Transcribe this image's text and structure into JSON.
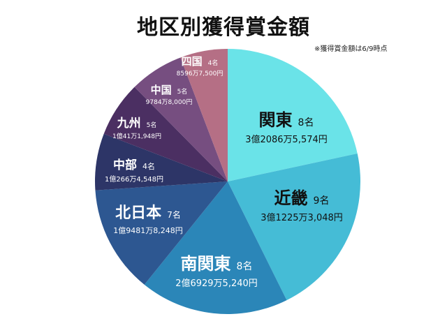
{
  "chart_data": {
    "type": "pie",
    "title": "地区別獲得賞金額",
    "note": "※獲得賞金額は6/9時点",
    "slices": [
      {
        "region": "関東",
        "count_label": "8名",
        "amount_label": "3億2086万5,574円",
        "value": 320865574,
        "color": "#6ae3e8",
        "text": "dark"
      },
      {
        "region": "近畿",
        "count_label": "9名",
        "amount_label": "3億1225万3,048円",
        "value": 312253048,
        "color": "#45bcd6",
        "text": "dark"
      },
      {
        "region": "南関東",
        "count_label": "8名",
        "amount_label": "2億6929万5,240円",
        "value": 269295240,
        "color": "#2b86b8",
        "text": "light"
      },
      {
        "region": "北日本",
        "count_label": "7名",
        "amount_label": "1億9481万8,248円",
        "value": 194818248,
        "color": "#2d5791",
        "text": "light"
      },
      {
        "region": "中部",
        "count_label": "4名",
        "amount_label": "1億266万4,548円",
        "value": 102664548,
        "color": "#2d3567",
        "text": "light"
      },
      {
        "region": "九州",
        "count_label": "5名",
        "amount_label": "1億41万1,948円",
        "value": 100411948,
        "color": "#4b2f62",
        "text": "light"
      },
      {
        "region": "中国",
        "count_label": "5名",
        "amount_label": "9784万8,000円",
        "value": 97848000,
        "color": "#764e80",
        "text": "light"
      },
      {
        "region": "四国",
        "count_label": "4名",
        "amount_label": "8596万7,500円",
        "value": 85967500,
        "color": "#b56f85",
        "text": "light"
      }
    ]
  }
}
